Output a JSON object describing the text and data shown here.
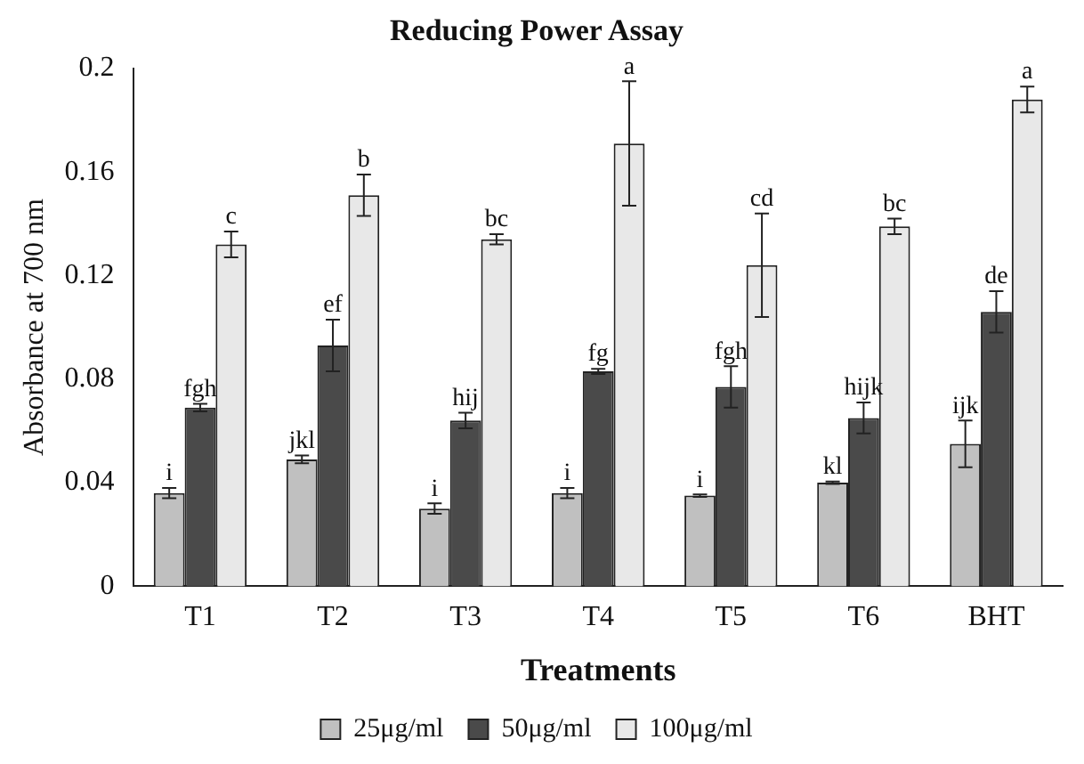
{
  "chart_data": {
    "type": "bar",
    "title": "Reducing Power Assay",
    "xlabel": "Treatments",
    "ylabel": "Absorbance at 700 nm",
    "categories": [
      "T1",
      "T2",
      "T3",
      "T4",
      "T5",
      "T6",
      "BHT"
    ],
    "series": [
      {
        "name": "25μg/ml",
        "color": "#c0c0c0",
        "values": [
          0.036,
          0.049,
          0.03,
          0.036,
          0.035,
          0.04,
          0.055
        ],
        "errors": [
          0.002,
          0.0015,
          0.002,
          0.002,
          0.0005,
          0.0005,
          0.009
        ]
      },
      {
        "name": "50μg/ml",
        "color": "#4a4a4a",
        "values": [
          0.069,
          0.093,
          0.064,
          0.083,
          0.077,
          0.065,
          0.106
        ],
        "errors": [
          0.0015,
          0.01,
          0.003,
          0.001,
          0.008,
          0.006,
          0.008
        ]
      },
      {
        "name": "100μg/ml",
        "color": "#e8e8e8",
        "values": [
          0.132,
          0.151,
          0.134,
          0.171,
          0.124,
          0.139,
          0.188
        ],
        "errors": [
          0.005,
          0.008,
          0.002,
          0.024,
          0.02,
          0.003,
          0.005
        ]
      }
    ],
    "annotations": [
      "i",
      "fgh",
      "c",
      "jkl",
      "ef",
      "b",
      "i",
      "hij",
      "bc",
      "i",
      "fg",
      "a",
      "i",
      "fgh",
      "cd",
      "kl",
      "hijk",
      "bc",
      "ijk",
      "de",
      "a"
    ],
    "ylim": [
      0,
      0.2
    ],
    "yticks": [
      0,
      0.04,
      0.08,
      0.12,
      0.16,
      0.2
    ],
    "grid": false,
    "legend": "bottom"
  }
}
